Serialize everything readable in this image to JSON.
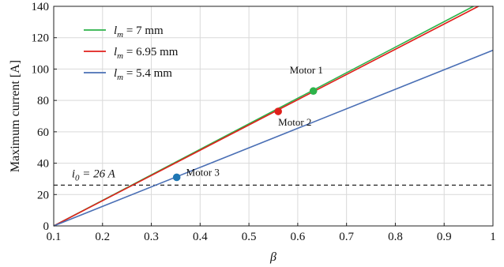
{
  "chart_data": {
    "type": "line",
    "xlabel": "β",
    "ylabel": "Maximum current [A]",
    "xlim": [
      0.1,
      1.0
    ],
    "ylim": [
      0,
      140
    ],
    "xticks": [
      "0.1",
      "0.2",
      "0.3",
      "0.4",
      "0.5",
      "0.6",
      "0.7",
      "0.8",
      "0.9",
      "1"
    ],
    "yticks": [
      "0",
      "20",
      "40",
      "60",
      "80",
      "100",
      "120",
      "140"
    ],
    "grid": true,
    "legend_position": "top-left",
    "series": [
      {
        "name": "l_m = 7 mm",
        "label_var": "l",
        "label_sub": "m",
        "label_val": " = 7 mm",
        "color": "#2db34a",
        "x": [
          0.1,
          1.0
        ],
        "y": [
          0,
          146.5
        ]
      },
      {
        "name": "l_m = 6.95 mm",
        "label_var": "l",
        "label_sub": "m",
        "label_val": " = 6.95 mm",
        "color": "#e0201b",
        "x": [
          0.1,
          1.0
        ],
        "y": [
          0,
          144.8
        ]
      },
      {
        "name": "l_m = 5.4 mm",
        "label_var": "l",
        "label_sub": "m",
        "label_val": " = 5.4 mm",
        "color": "#4a6fb5",
        "x": [
          0.1,
          1.0
        ],
        "y": [
          0,
          112
        ]
      }
    ],
    "points": [
      {
        "label": "Motor 1",
        "x": 0.632,
        "y": 86,
        "color": "#2db34a",
        "label_pos": "above"
      },
      {
        "label": "Motor 2",
        "x": 0.56,
        "y": 73,
        "color": "#e0201b",
        "label_pos": "below-right"
      },
      {
        "label": "Motor 3",
        "x": 0.352,
        "y": 31,
        "color": "#1f77b4",
        "label_pos": "right"
      }
    ],
    "reference_line": {
      "y": 26,
      "label_var": "i",
      "label_sub": "0",
      "label_val": " = 26 A",
      "style": "dashed",
      "color": "#222222"
    }
  }
}
